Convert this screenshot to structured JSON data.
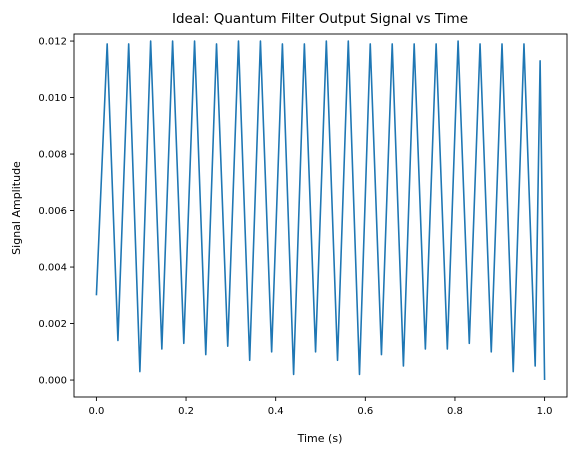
{
  "chart_data": {
    "type": "line",
    "title": "Ideal: Quantum Filter Output Signal vs Time",
    "xlabel": "Time (s)",
    "ylabel": "Signal Amplitude",
    "xlim": [
      -0.05,
      1.05
    ],
    "ylim": [
      -0.0006,
      0.01225
    ],
    "xticks": [
      0.0,
      0.2,
      0.4,
      0.6,
      0.8,
      1.0
    ],
    "xtick_labels": [
      "0.0",
      "0.2",
      "0.4",
      "0.6",
      "0.8",
      "1.0"
    ],
    "yticks": [
      0.0,
      0.002,
      0.004,
      0.006,
      0.008,
      0.01,
      0.012
    ],
    "ytick_labels": [
      "0.000",
      "0.002",
      "0.004",
      "0.006",
      "0.008",
      "0.010",
      "0.012"
    ],
    "grid": false,
    "line_color": "#1f77b4",
    "series": [
      {
        "x": [
          0.0,
          0.024,
          0.048,
          0.072,
          0.097,
          0.121,
          0.146,
          0.17,
          0.195,
          0.219,
          0.244,
          0.268,
          0.293,
          0.317,
          0.342,
          0.366,
          0.391,
          0.415,
          0.44,
          0.464,
          0.489,
          0.513,
          0.538,
          0.562,
          0.587,
          0.611,
          0.636,
          0.66,
          0.685,
          0.709,
          0.734,
          0.758,
          0.783,
          0.807,
          0.832,
          0.856,
          0.881,
          0.905,
          0.93,
          0.954,
          0.979,
          0.99,
          1.0
        ],
        "y": [
          0.003,
          0.0119,
          0.0014,
          0.0119,
          0.0003,
          0.012,
          0.0011,
          0.012,
          0.0013,
          0.012,
          0.0009,
          0.0119,
          0.0012,
          0.012,
          0.0007,
          0.012,
          0.001,
          0.0119,
          0.0002,
          0.0119,
          0.001,
          0.012,
          0.0007,
          0.012,
          0.0002,
          0.0119,
          0.0009,
          0.0119,
          0.0005,
          0.0119,
          0.0011,
          0.0119,
          0.0011,
          0.012,
          0.0013,
          0.0119,
          0.001,
          0.0119,
          0.0003,
          0.0119,
          0.0005,
          0.0113,
          0.0
        ]
      }
    ]
  }
}
